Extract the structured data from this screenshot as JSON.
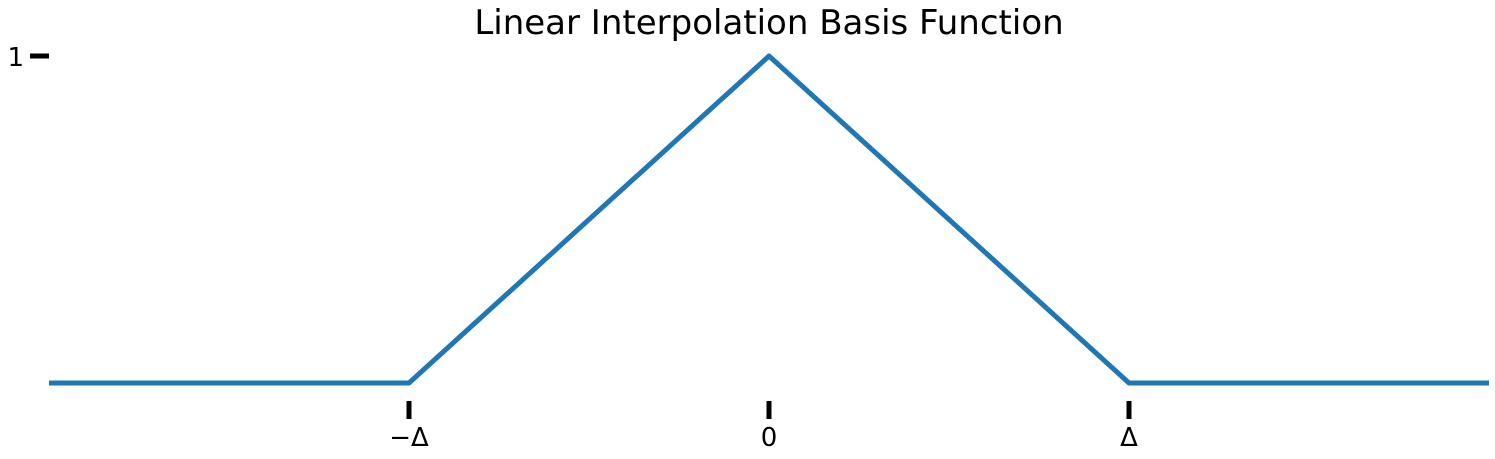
{
  "chart_data": {
    "type": "line",
    "title": "Linear Interpolation Basis Function",
    "xlabel": "",
    "ylabel": "",
    "xlim": [
      -2,
      2
    ],
    "ylim": [
      0,
      1
    ],
    "grid": false,
    "series": [
      {
        "color": "#1f77b4",
        "x": [
          -2,
          -1,
          0,
          1,
          2
        ],
        "y": [
          0,
          0,
          1,
          0,
          0
        ]
      }
    ],
    "xticks": [
      {
        "value": -1,
        "label": "−Δ"
      },
      {
        "value": 0,
        "label": "0"
      },
      {
        "value": 1,
        "label": "Δ"
      }
    ],
    "yticks": [
      {
        "value": 1,
        "label": "1"
      }
    ]
  }
}
